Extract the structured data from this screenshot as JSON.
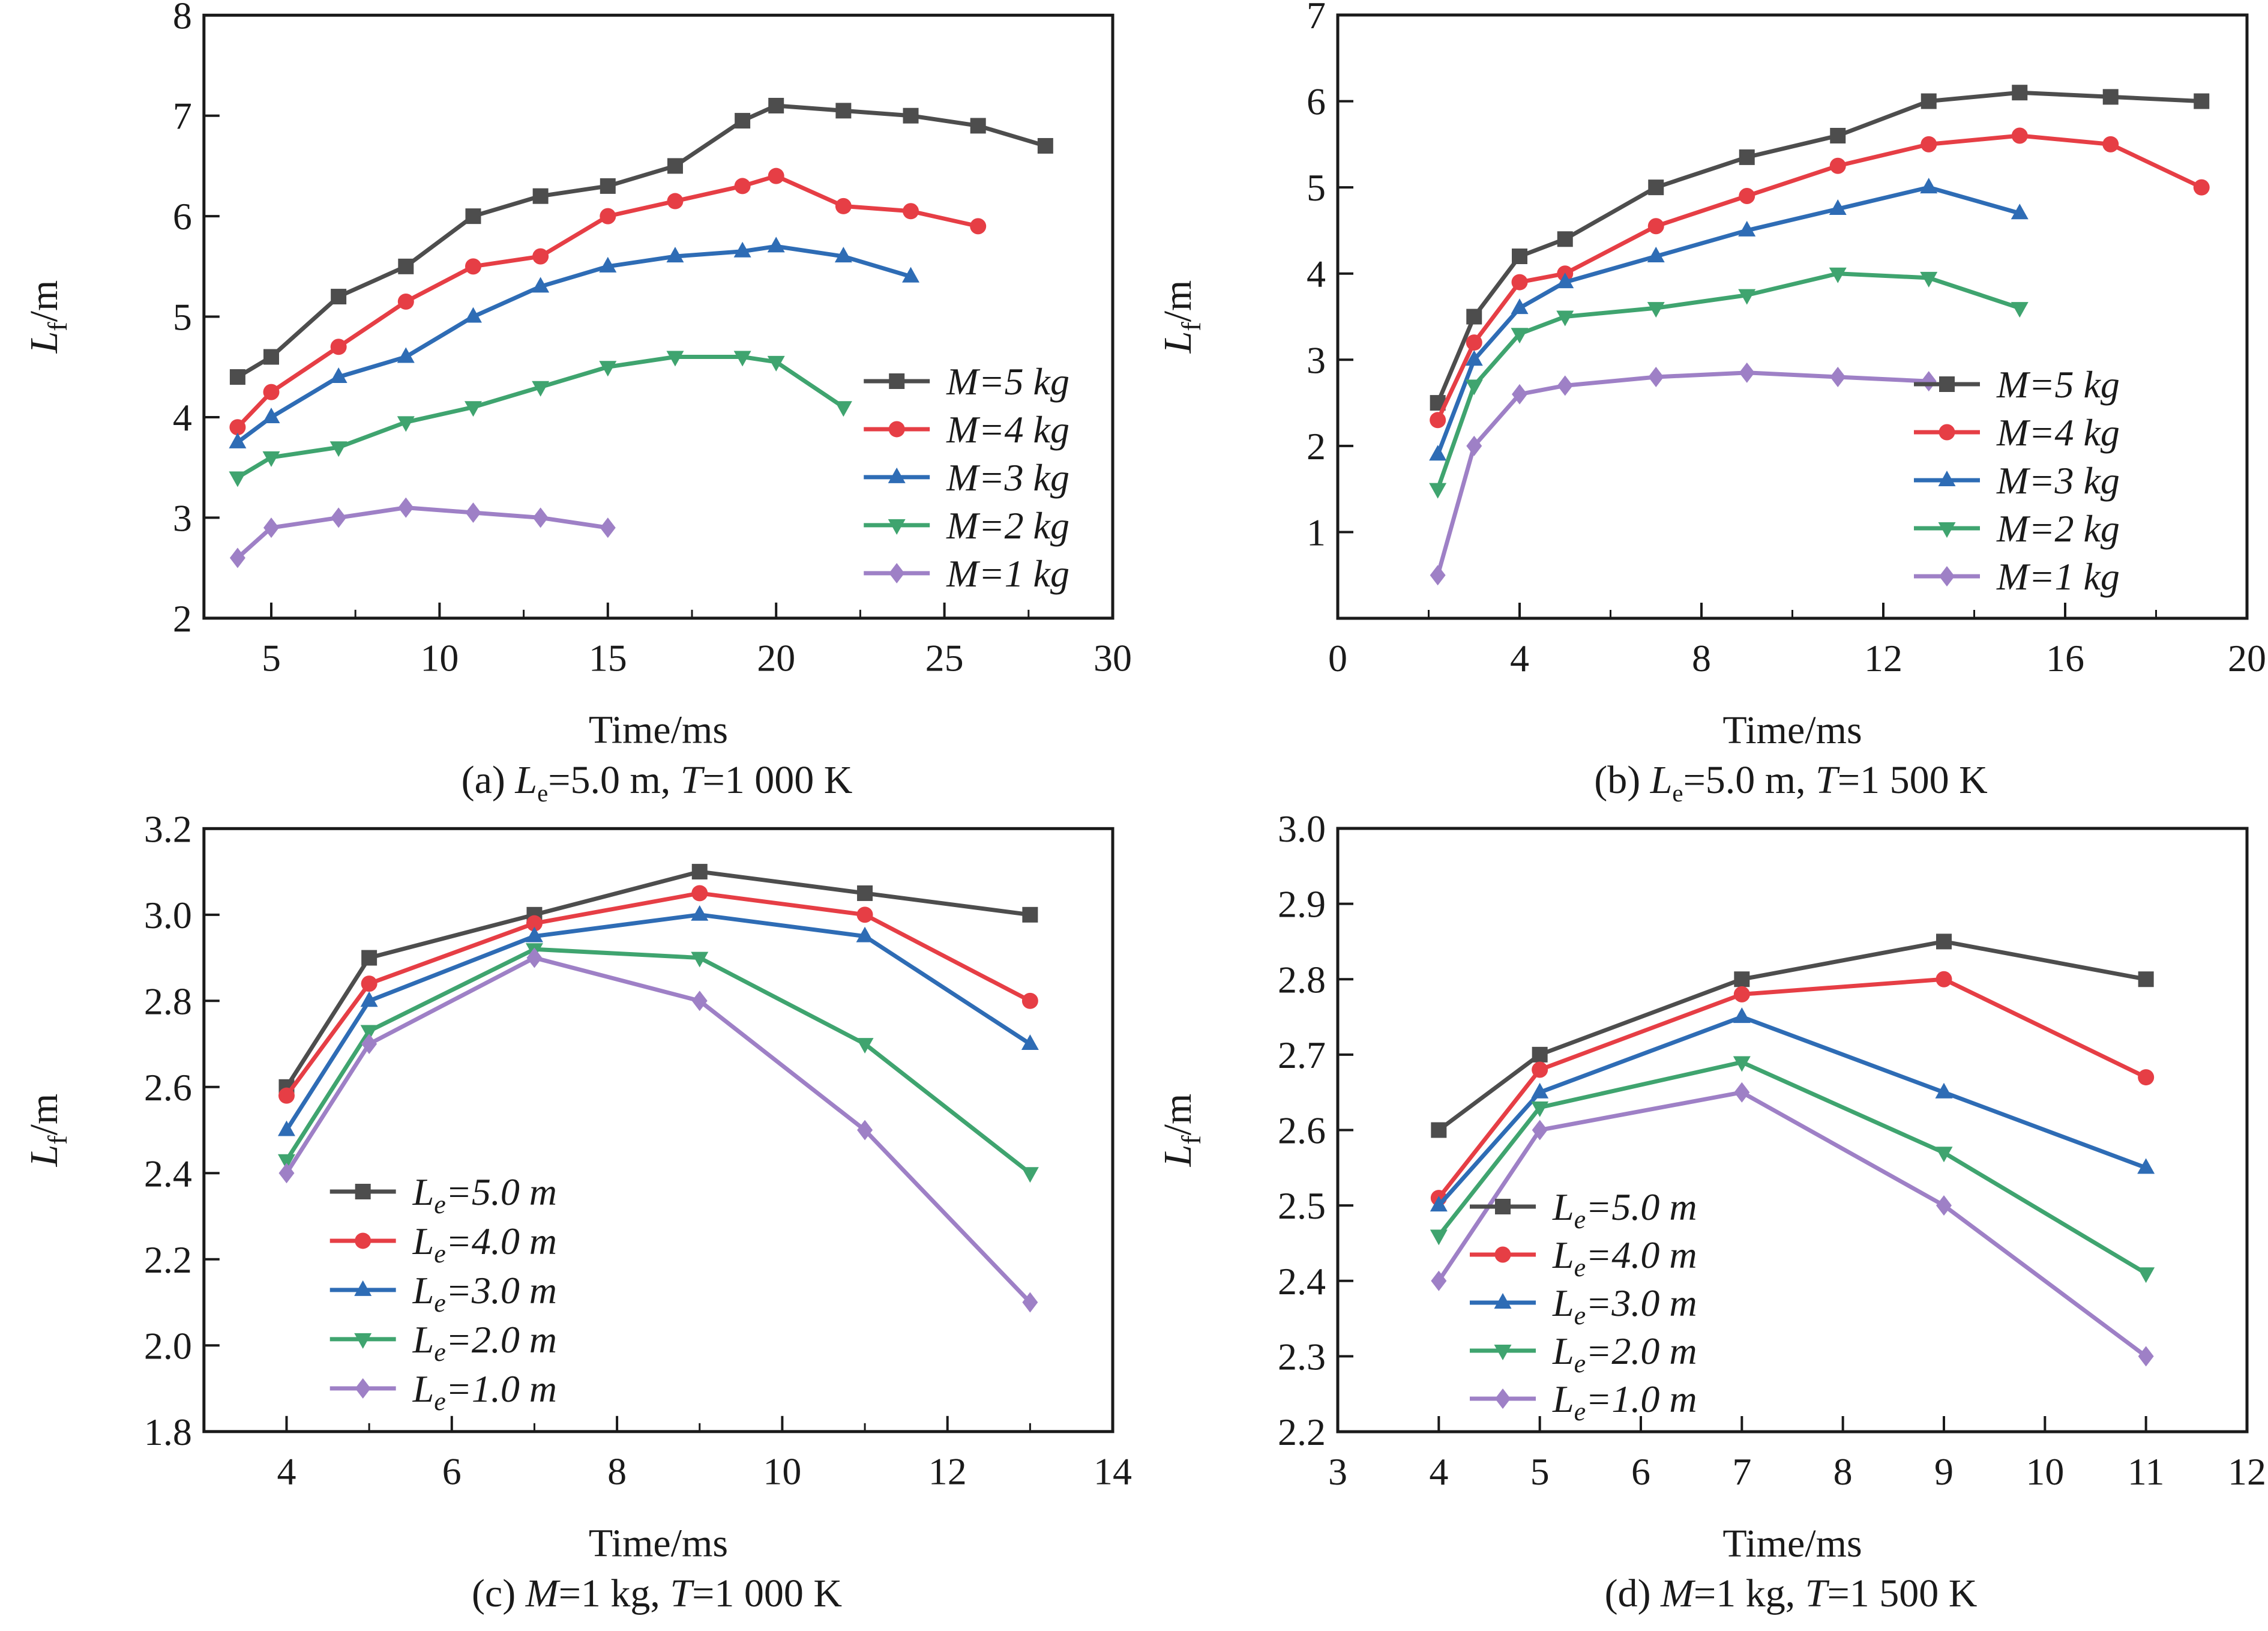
{
  "figure": {
    "xlabel": "Time/ms",
    "ylabel": {
      "var": "L",
      "sub": "f",
      "rest": "/m"
    },
    "colors": {
      "black": "#4d4d4d",
      "red": "#e63e45",
      "blue": "#2e6cb5",
      "green": "#3fa46f",
      "purple": "#9e80c6"
    }
  },
  "panels": [
    {
      "caption": {
        "index": "(a) ",
        "v1": "L",
        "v1sub": "e",
        "v1val": "=5.0 m, ",
        "v2": "T",
        "v2val": "=1 000 K"
      }
    },
    {
      "caption": {
        "index": "(b) ",
        "v1": "L",
        "v1sub": "e",
        "v1val": "=5.0 m, ",
        "v2": "T",
        "v2val": "=1 500 K"
      }
    },
    {
      "caption": {
        "index": "(c) ",
        "v1": "M",
        "v1sub": "",
        "v1val": "=1 kg, ",
        "v2": "T",
        "v2val": "=1 000 K"
      }
    },
    {
      "caption": {
        "index": "(d) ",
        "v1": "M",
        "v1sub": "",
        "v1val": "=1 kg, ",
        "v2": "T",
        "v2val": "=1 500 K"
      }
    }
  ],
  "chart_data": [
    {
      "id": "a",
      "type": "line",
      "title": "(a) Le=5.0 m, T=1 000 K",
      "xlabel": "Time/ms",
      "ylabel": {
        "var": "L",
        "sub": "f",
        "rest": "/m"
      },
      "xlim": [
        3,
        30
      ],
      "ylim": [
        2,
        8
      ],
      "xticks": [
        "5",
        "10",
        "15",
        "20",
        "25",
        "30"
      ],
      "xminor": [
        7.5,
        12.5,
        17.5,
        22.5,
        27.5
      ],
      "yticks": [
        "2",
        "3",
        "4",
        "5",
        "6",
        "7",
        "8"
      ],
      "grid": false,
      "legend_position": "lower-right",
      "series": [
        {
          "name": {
            "var": "M",
            "sub": "",
            "val": "=5 kg"
          },
          "color": "#4d4d4d",
          "marker": "square",
          "x": [
            4,
            5,
            7,
            9,
            11,
            13,
            15,
            17,
            19,
            20,
            22,
            24,
            26,
            28
          ],
          "y": [
            4.4,
            4.6,
            5.2,
            5.5,
            6.0,
            6.2,
            6.3,
            6.5,
            6.95,
            7.1,
            7.05,
            7.0,
            6.9,
            6.7
          ]
        },
        {
          "name": {
            "var": "M",
            "sub": "",
            "val": "=4 kg"
          },
          "color": "#e63e45",
          "marker": "circle",
          "x": [
            4,
            5,
            7,
            9,
            11,
            13,
            15,
            17,
            19,
            20,
            22,
            24,
            26
          ],
          "y": [
            3.9,
            4.25,
            4.7,
            5.15,
            5.5,
            5.6,
            6.0,
            6.15,
            6.3,
            6.4,
            6.1,
            6.05,
            5.9
          ]
        },
        {
          "name": {
            "var": "M",
            "sub": "",
            "val": "=3 kg"
          },
          "color": "#2e6cb5",
          "marker": "triangle-up",
          "x": [
            4,
            5,
            7,
            9,
            11,
            13,
            15,
            17,
            19,
            20,
            22,
            24
          ],
          "y": [
            3.75,
            4.0,
            4.4,
            4.6,
            5.0,
            5.3,
            5.5,
            5.6,
            5.65,
            5.7,
            5.6,
            5.4
          ]
        },
        {
          "name": {
            "var": "M",
            "sub": "",
            "val": "=2 kg"
          },
          "color": "#3fa46f",
          "marker": "triangle-down",
          "x": [
            4,
            5,
            7,
            9,
            11,
            13,
            15,
            17,
            19,
            20,
            22
          ],
          "y": [
            3.4,
            3.6,
            3.7,
            3.95,
            4.1,
            4.3,
            4.5,
            4.6,
            4.6,
            4.55,
            4.1
          ]
        },
        {
          "name": {
            "var": "M",
            "sub": "",
            "val": "=1 kg"
          },
          "color": "#9e80c6",
          "marker": "diamond",
          "x": [
            4,
            5,
            7,
            9,
            11,
            13,
            15
          ],
          "y": [
            2.6,
            2.9,
            3.0,
            3.1,
            3.05,
            3.0,
            2.9
          ]
        }
      ]
    },
    {
      "id": "b",
      "type": "line",
      "title": "(b) Le=5.0 m, T=1 500 K",
      "xlabel": "Time/ms",
      "ylabel": {
        "var": "L",
        "sub": "f",
        "rest": "/m"
      },
      "xlim": [
        0,
        20
      ],
      "ylim": [
        0,
        7
      ],
      "xticks": [
        "0",
        "4",
        "8",
        "12",
        "16",
        "20"
      ],
      "xminor": [
        2,
        6,
        10,
        14,
        18
      ],
      "yticks": [
        "1",
        "2",
        "3",
        "4",
        "5",
        "6",
        "7"
      ],
      "grid": false,
      "legend_position": "lower-right",
      "series": [
        {
          "name": {
            "var": "M",
            "sub": "",
            "val": "=5 kg"
          },
          "color": "#4d4d4d",
          "marker": "square",
          "x": [
            2.2,
            3,
            4,
            5,
            7,
            9,
            11,
            13,
            15,
            17,
            19
          ],
          "y": [
            2.5,
            3.5,
            4.2,
            4.4,
            5.0,
            5.35,
            5.6,
            6.0,
            6.1,
            6.05,
            6.0
          ]
        },
        {
          "name": {
            "var": "M",
            "sub": "",
            "val": "=4 kg"
          },
          "color": "#e63e45",
          "marker": "circle",
          "x": [
            2.2,
            3,
            4,
            5,
            7,
            9,
            11,
            13,
            15,
            17,
            19
          ],
          "y": [
            2.3,
            3.2,
            3.9,
            4.0,
            4.55,
            4.9,
            5.25,
            5.5,
            5.6,
            5.5,
            5.0
          ]
        },
        {
          "name": {
            "var": "M",
            "sub": "",
            "val": "=3 kg"
          },
          "color": "#2e6cb5",
          "marker": "triangle-up",
          "x": [
            2.2,
            3,
            4,
            5,
            7,
            9,
            11,
            13,
            15
          ],
          "y": [
            1.9,
            3.0,
            3.6,
            3.9,
            4.2,
            4.5,
            4.75,
            5.0,
            4.7
          ]
        },
        {
          "name": {
            "var": "M",
            "sub": "",
            "val": "=2 kg"
          },
          "color": "#3fa46f",
          "marker": "triangle-down",
          "x": [
            2.2,
            3,
            4,
            5,
            7,
            9,
            11,
            13,
            15
          ],
          "y": [
            1.5,
            2.7,
            3.3,
            3.5,
            3.6,
            3.75,
            4.0,
            3.95,
            3.6
          ]
        },
        {
          "name": {
            "var": "M",
            "sub": "",
            "val": "=1 kg"
          },
          "color": "#9e80c6",
          "marker": "diamond",
          "x": [
            2.2,
            3,
            4,
            5,
            7,
            9,
            11,
            13
          ],
          "y": [
            0.5,
            2.0,
            2.6,
            2.7,
            2.8,
            2.85,
            2.8,
            2.75
          ]
        }
      ]
    },
    {
      "id": "c",
      "type": "line",
      "title": "(c) M=1 kg, T=1 000 K",
      "xlabel": "Time/ms",
      "ylabel": {
        "var": "L",
        "sub": "f",
        "rest": "/m"
      },
      "xlim": [
        3,
        14
      ],
      "ylim": [
        1.8,
        3.2
      ],
      "xticks": [
        "4",
        "6",
        "8",
        "10",
        "12",
        "14"
      ],
      "xminor": [
        5,
        7,
        9,
        11,
        13
      ],
      "yticks": [
        "1.8",
        "2.0",
        "2.2",
        "2.4",
        "2.6",
        "2.8",
        "3.0",
        "3.2"
      ],
      "grid": false,
      "legend_position": "lower-left",
      "series": [
        {
          "name": {
            "var": "L",
            "sub": "e",
            "val": "=5.0 m"
          },
          "color": "#4d4d4d",
          "marker": "square",
          "x": [
            4,
            5,
            7,
            9,
            11,
            13
          ],
          "y": [
            2.6,
            2.9,
            3.0,
            3.1,
            3.05,
            3.0
          ]
        },
        {
          "name": {
            "var": "L",
            "sub": "e",
            "val": "=4.0 m"
          },
          "color": "#e63e45",
          "marker": "circle",
          "x": [
            4,
            5,
            7,
            9,
            11,
            13
          ],
          "y": [
            2.58,
            2.84,
            2.98,
            3.05,
            3.0,
            2.8
          ]
        },
        {
          "name": {
            "var": "L",
            "sub": "e",
            "val": "=3.0 m"
          },
          "color": "#2e6cb5",
          "marker": "triangle-up",
          "x": [
            4,
            5,
            7,
            9,
            11,
            13
          ],
          "y": [
            2.5,
            2.8,
            2.95,
            3.0,
            2.95,
            2.7
          ]
        },
        {
          "name": {
            "var": "L",
            "sub": "e",
            "val": "=2.0 m"
          },
          "color": "#3fa46f",
          "marker": "triangle-down",
          "x": [
            4,
            5,
            7,
            9,
            11,
            13
          ],
          "y": [
            2.43,
            2.73,
            2.92,
            2.9,
            2.7,
            2.4
          ]
        },
        {
          "name": {
            "var": "L",
            "sub": "e",
            "val": "=1.0 m"
          },
          "color": "#9e80c6",
          "marker": "diamond",
          "x": [
            4,
            5,
            7,
            9,
            11,
            13
          ],
          "y": [
            2.4,
            2.7,
            2.9,
            2.8,
            2.5,
            2.1
          ]
        }
      ]
    },
    {
      "id": "d",
      "type": "line",
      "title": "(d) M=1 kg, T=1 500 K",
      "xlabel": "Time/ms",
      "ylabel": {
        "var": "L",
        "sub": "f",
        "rest": "/m"
      },
      "xlim": [
        3,
        12
      ],
      "ylim": [
        2.2,
        3.0
      ],
      "xticks": [
        "3",
        "4",
        "5",
        "6",
        "7",
        "8",
        "9",
        "10",
        "11",
        "12"
      ],
      "xminor": [],
      "yticks": [
        "2.2",
        "2.3",
        "2.4",
        "2.5",
        "2.6",
        "2.7",
        "2.8",
        "2.9",
        "3.0"
      ],
      "grid": false,
      "legend_position": "lower-left",
      "series": [
        {
          "name": {
            "var": "L",
            "sub": "e",
            "val": "=5.0 m"
          },
          "color": "#4d4d4d",
          "marker": "square",
          "x": [
            4,
            5,
            7,
            9,
            11
          ],
          "y": [
            2.6,
            2.7,
            2.8,
            2.85,
            2.8
          ]
        },
        {
          "name": {
            "var": "L",
            "sub": "e",
            "val": "=4.0 m"
          },
          "color": "#e63e45",
          "marker": "circle",
          "x": [
            4,
            5,
            7,
            9,
            11
          ],
          "y": [
            2.51,
            2.68,
            2.78,
            2.8,
            2.67
          ]
        },
        {
          "name": {
            "var": "L",
            "sub": "e",
            "val": "=3.0 m"
          },
          "color": "#2e6cb5",
          "marker": "triangle-up",
          "x": [
            4,
            5,
            7,
            9,
            11
          ],
          "y": [
            2.5,
            2.65,
            2.75,
            2.65,
            2.55
          ]
        },
        {
          "name": {
            "var": "L",
            "sub": "e",
            "val": "=2.0 m"
          },
          "color": "#3fa46f",
          "marker": "triangle-down",
          "x": [
            4,
            5,
            7,
            9,
            11
          ],
          "y": [
            2.46,
            2.63,
            2.69,
            2.57,
            2.41
          ]
        },
        {
          "name": {
            "var": "L",
            "sub": "e",
            "val": "=1.0 m"
          },
          "color": "#9e80c6",
          "marker": "diamond",
          "x": [
            4,
            5,
            7,
            9,
            11
          ],
          "y": [
            2.4,
            2.6,
            2.65,
            2.5,
            2.3
          ]
        }
      ]
    }
  ]
}
